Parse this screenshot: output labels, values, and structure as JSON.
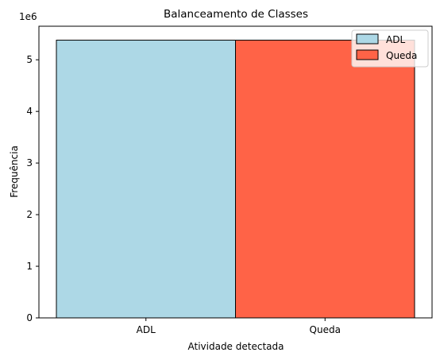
{
  "chart_data": {
    "type": "bar",
    "title": "Balanceamento de Classes",
    "xlabel": "Atividade detectada",
    "ylabel": "Frequência",
    "y_offset_label": "1e6",
    "categories": [
      "ADL",
      "Queda"
    ],
    "values": [
      5.38,
      5.38
    ],
    "value_multiplier": 1000000,
    "ylim": [
      0,
      5.65
    ],
    "yticks": [
      0,
      1,
      2,
      3,
      4,
      5
    ],
    "colors": [
      "#add8e6",
      "#ff6347"
    ],
    "edge_color": "#000000",
    "grid": false,
    "legend": {
      "placement": "top-right",
      "entries": [
        {
          "label": "ADL",
          "color": "#add8e6"
        },
        {
          "label": "Queda",
          "color": "#ff6347"
        }
      ]
    }
  }
}
